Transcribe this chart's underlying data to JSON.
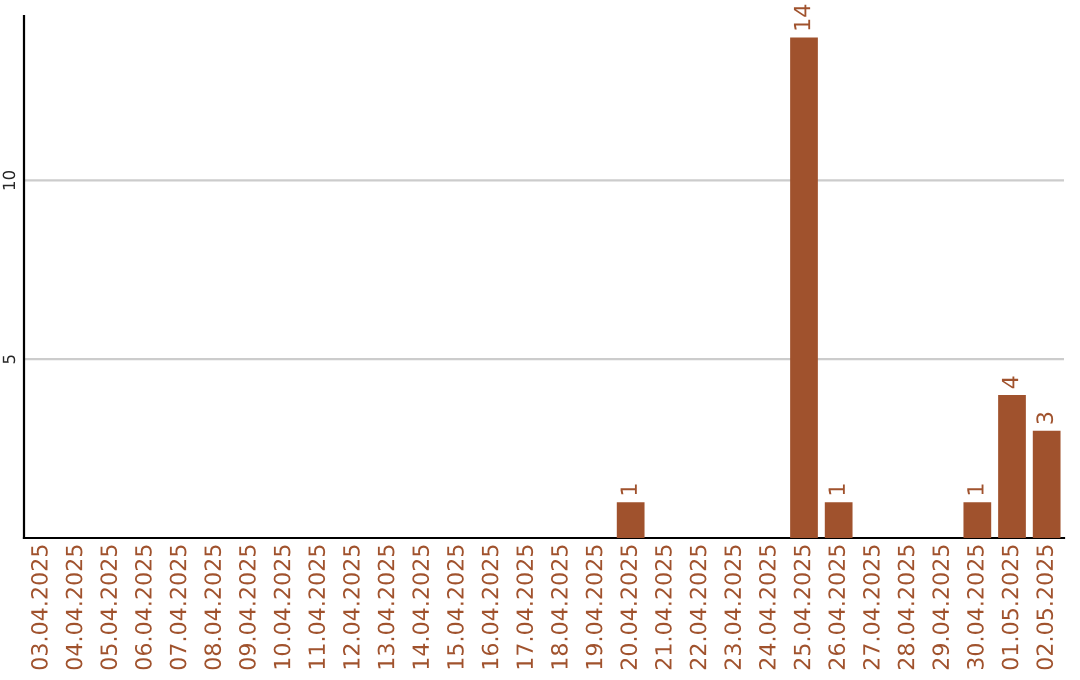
{
  "chart_data": {
    "type": "bar",
    "categories": [
      "03.04.2025",
      "04.04.2025",
      "05.04.2025",
      "06.04.2025",
      "07.04.2025",
      "08.04.2025",
      "09.04.2025",
      "10.04.2025",
      "11.04.2025",
      "12.04.2025",
      "13.04.2025",
      "14.04.2025",
      "15.04.2025",
      "16.04.2025",
      "17.04.2025",
      "18.04.2025",
      "19.04.2025",
      "20.04.2025",
      "21.04.2025",
      "22.04.2025",
      "23.04.2025",
      "24.04.2025",
      "25.04.2025",
      "26.04.2025",
      "27.04.2025",
      "28.04.2025",
      "29.04.2025",
      "30.04.2025",
      "01.05.2025",
      "02.05.2025"
    ],
    "values": [
      0,
      0,
      0,
      0,
      0,
      0,
      0,
      0,
      0,
      0,
      0,
      0,
      0,
      0,
      0,
      0,
      0,
      1,
      0,
      0,
      0,
      0,
      14,
      1,
      0,
      0,
      0,
      1,
      4,
      3
    ],
    "value_labels": [
      null,
      null,
      null,
      null,
      null,
      null,
      null,
      null,
      null,
      null,
      null,
      null,
      null,
      null,
      null,
      null,
      null,
      "1",
      null,
      null,
      null,
      null,
      "14",
      "1",
      null,
      null,
      null,
      "1",
      "4",
      "3"
    ],
    "color": "#a0522d",
    "ylim": [
      0,
      14.6
    ],
    "yticks": [
      5,
      10
    ],
    "grid": "y"
  }
}
